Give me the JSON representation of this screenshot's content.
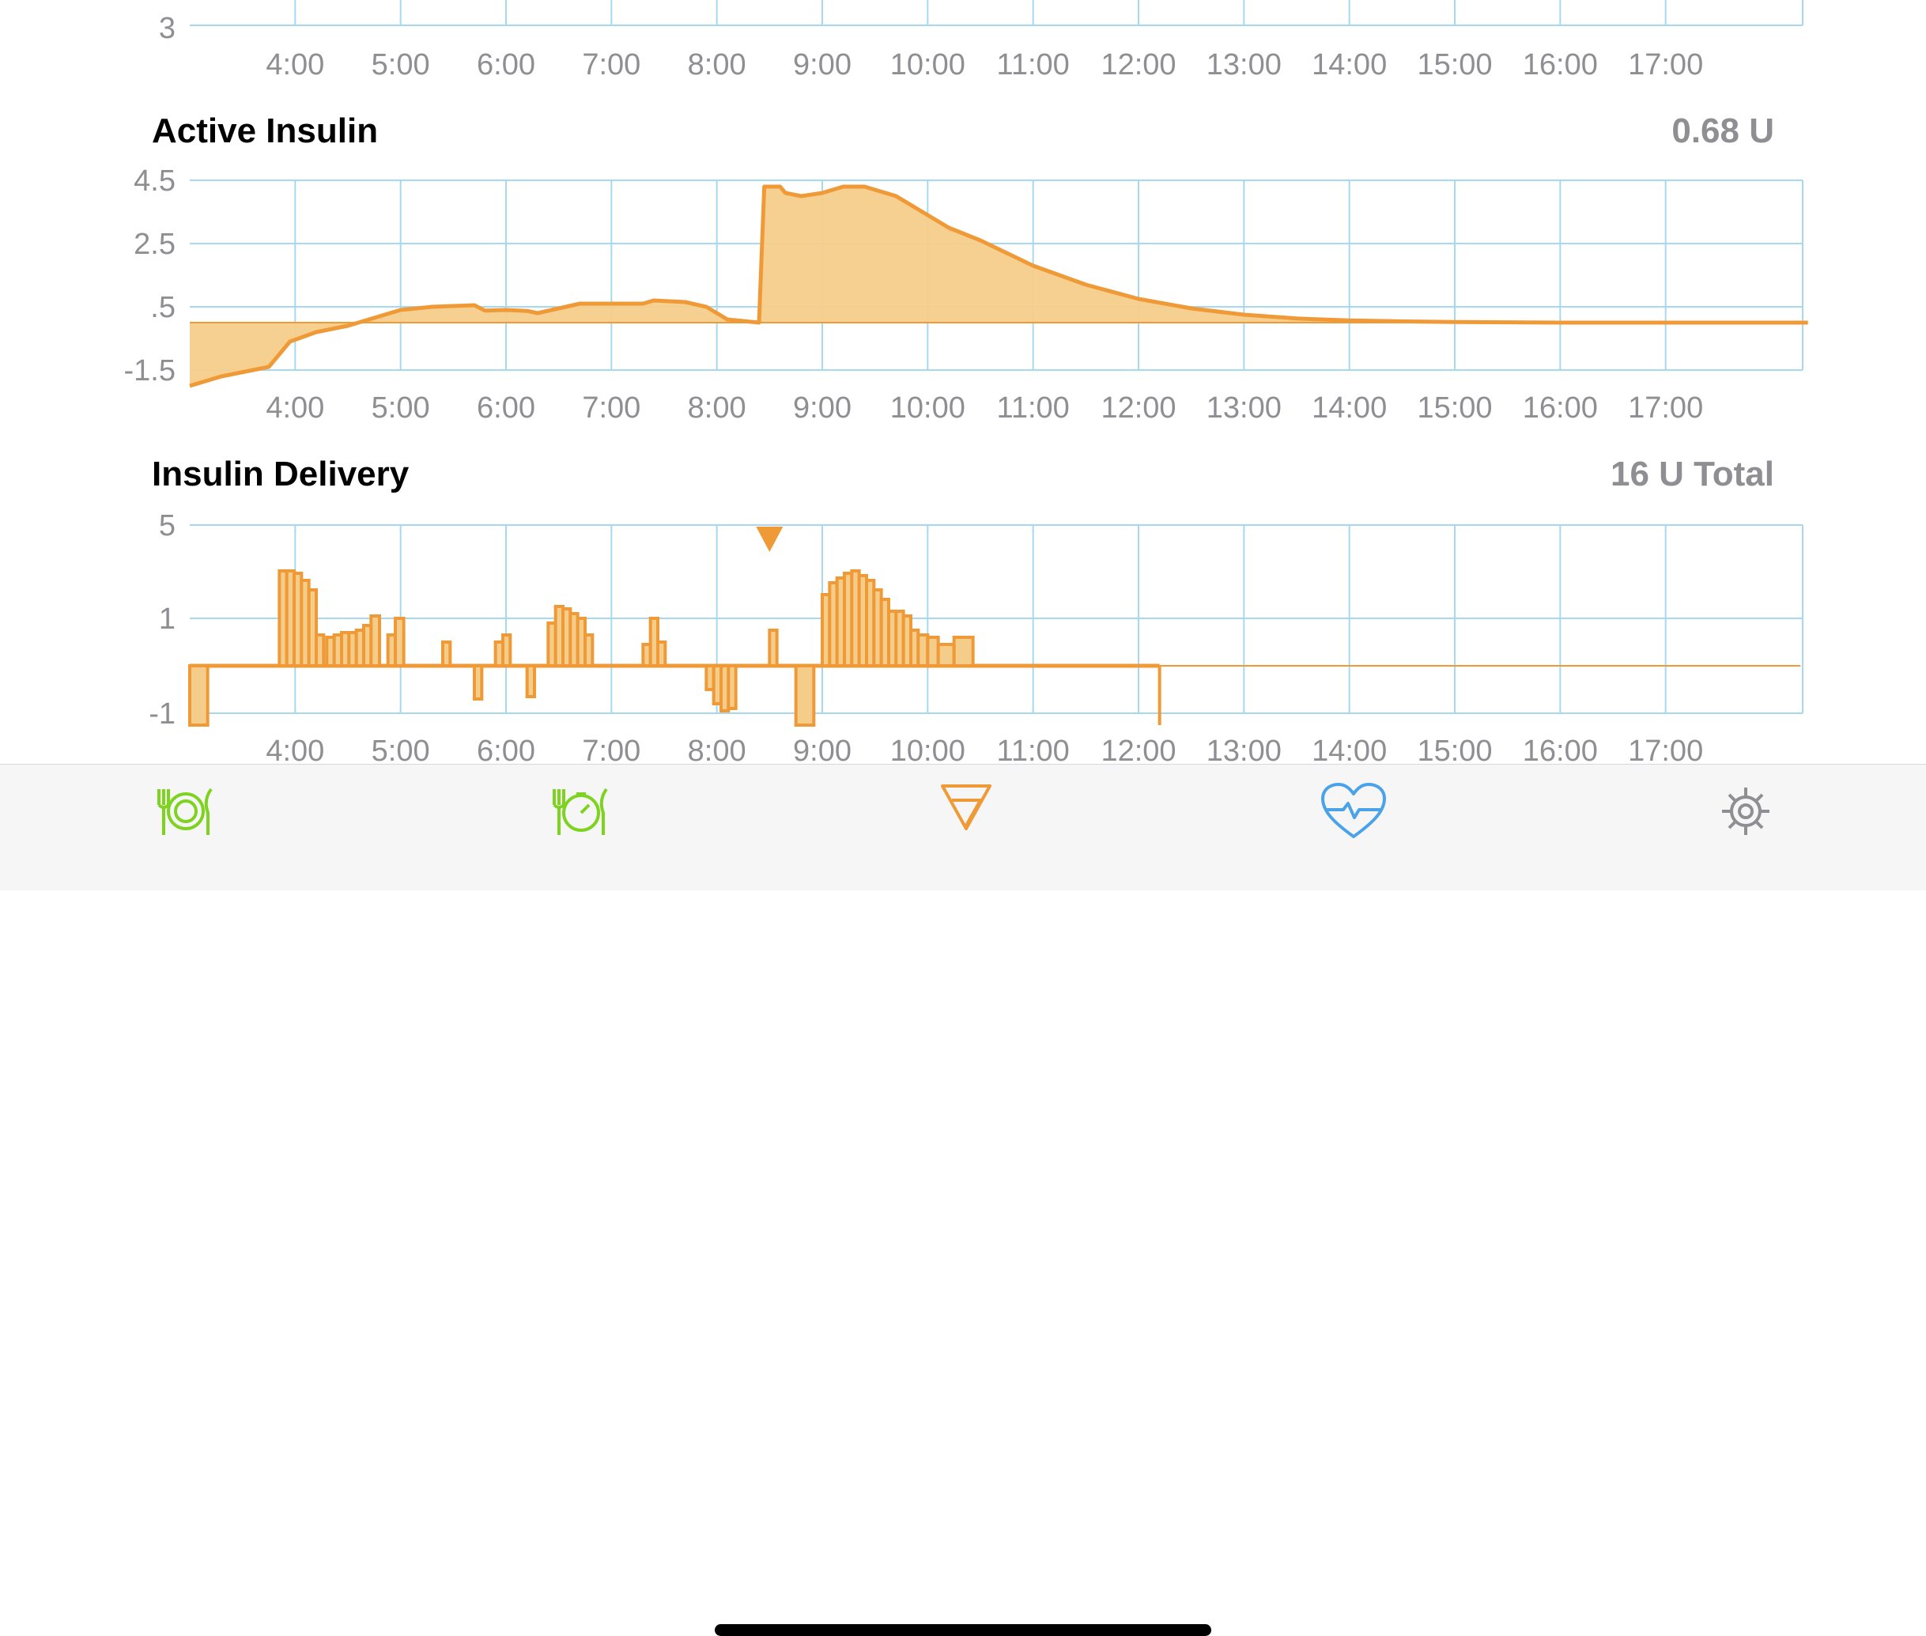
{
  "chart_data": [
    {
      "type": "line",
      "title": "",
      "y_ticks": [
        "3"
      ],
      "x_ticks": [
        "4:00",
        "5:00",
        "6:00",
        "7:00",
        "8:00",
        "9:00",
        "10:00",
        "11:00",
        "12:00",
        "13:00",
        "14:00",
        "15:00",
        "16:00",
        "17:00"
      ],
      "grid": true
    },
    {
      "type": "area",
      "title": "Active Insulin",
      "value_label": "0.68 U",
      "y_ticks": [
        "4.5",
        "2.5",
        ".5",
        "-1.5"
      ],
      "ylim": [
        -1.5,
        4.5
      ],
      "baseline": 0,
      "x_ticks": [
        "4:00",
        "5:00",
        "6:00",
        "7:00",
        "8:00",
        "9:00",
        "10:00",
        "11:00",
        "12:00",
        "13:00",
        "14:00",
        "15:00",
        "16:00",
        "17:00"
      ],
      "grid": true,
      "color": "#f09a37",
      "fill": "#f5cd8a",
      "x": [
        3.0,
        3.3,
        3.75,
        3.95,
        4.2,
        4.5,
        4.7,
        5.0,
        5.3,
        5.7,
        5.8,
        6.0,
        6.2,
        6.3,
        6.5,
        6.7,
        7.0,
        7.3,
        7.4,
        7.7,
        7.9,
        8.1,
        8.4,
        8.45,
        8.6,
        8.65,
        8.8,
        9.0,
        9.2,
        9.4,
        9.7,
        10.0,
        10.2,
        10.5,
        11.0,
        11.5,
        12.0,
        12.5,
        13.0,
        13.5,
        14.0,
        14.5,
        15.0,
        15.5,
        16.0,
        16.5,
        17.0,
        17.5,
        18.35
      ],
      "y": [
        -2.0,
        -1.7,
        -1.4,
        -0.6,
        -0.3,
        -0.1,
        0.1,
        0.4,
        0.5,
        0.55,
        0.38,
        0.4,
        0.37,
        0.3,
        0.45,
        0.6,
        0.6,
        0.6,
        0.7,
        0.65,
        0.5,
        0.1,
        0.0,
        4.3,
        4.3,
        4.1,
        4.0,
        4.1,
        4.3,
        4.3,
        4.0,
        3.4,
        3.0,
        2.6,
        1.8,
        1.2,
        0.75,
        0.45,
        0.25,
        0.13,
        0.07,
        0.04,
        0.02,
        0.01,
        0.0,
        0.0,
        0.0,
        0.0,
        0.0
      ]
    },
    {
      "type": "bar",
      "title": "Insulin Delivery",
      "value_label": "16 U Total",
      "y_ticks": [
        "5",
        "1",
        "-1"
      ],
      "ylim": [
        -1.25,
        3.0
      ],
      "x_ticks": [
        "4:00",
        "5:00",
        "6:00",
        "7:00",
        "8:00",
        "9:00",
        "10:00",
        "11:00",
        "12:00",
        "13:00",
        "14:00",
        "15:00",
        "16:00",
        "17:00"
      ],
      "grid": true,
      "color": "#f09a37",
      "fill": "#f5cd8a",
      "bolus_marker_time": 8.5,
      "delivery_end_time": 12.2,
      "bars": [
        {
          "start": 3.0,
          "end": 3.17,
          "value": -1.25
        },
        {
          "start": 3.85,
          "end": 3.92,
          "value": 2.0
        },
        {
          "start": 3.92,
          "end": 3.99,
          "value": 2.0
        },
        {
          "start": 3.99,
          "end": 4.06,
          "value": 1.95
        },
        {
          "start": 4.06,
          "end": 4.13,
          "value": 1.8
        },
        {
          "start": 4.13,
          "end": 4.2,
          "value": 1.6
        },
        {
          "start": 4.2,
          "end": 4.27,
          "value": 0.65
        },
        {
          "start": 4.3,
          "end": 4.37,
          "value": 0.6
        },
        {
          "start": 4.37,
          "end": 4.44,
          "value": 0.65
        },
        {
          "start": 4.44,
          "end": 4.51,
          "value": 0.7
        },
        {
          "start": 4.51,
          "end": 4.58,
          "value": 0.7
        },
        {
          "start": 4.58,
          "end": 4.65,
          "value": 0.75
        },
        {
          "start": 4.65,
          "end": 4.72,
          "value": 0.85
        },
        {
          "start": 4.72,
          "end": 4.8,
          "value": 1.05
        },
        {
          "start": 4.88,
          "end": 4.95,
          "value": 0.65
        },
        {
          "start": 4.95,
          "end": 5.03,
          "value": 1.0
        },
        {
          "start": 5.4,
          "end": 5.47,
          "value": 0.5
        },
        {
          "start": 5.7,
          "end": 5.77,
          "value": -0.7
        },
        {
          "start": 5.9,
          "end": 5.97,
          "value": 0.5
        },
        {
          "start": 5.97,
          "end": 6.04,
          "value": 0.65
        },
        {
          "start": 6.2,
          "end": 6.27,
          "value": -0.65
        },
        {
          "start": 6.4,
          "end": 6.47,
          "value": 0.9
        },
        {
          "start": 6.47,
          "end": 6.54,
          "value": 1.25
        },
        {
          "start": 6.54,
          "end": 6.61,
          "value": 1.2
        },
        {
          "start": 6.61,
          "end": 6.68,
          "value": 1.1
        },
        {
          "start": 6.68,
          "end": 6.75,
          "value": 1.0
        },
        {
          "start": 6.75,
          "end": 6.82,
          "value": 0.65
        },
        {
          "start": 7.3,
          "end": 7.37,
          "value": 0.45
        },
        {
          "start": 7.37,
          "end": 7.44,
          "value": 1.0
        },
        {
          "start": 7.44,
          "end": 7.51,
          "value": 0.5
        },
        {
          "start": 7.9,
          "end": 7.97,
          "value": -0.5
        },
        {
          "start": 7.97,
          "end": 8.04,
          "value": -0.8
        },
        {
          "start": 8.04,
          "end": 8.11,
          "value": -0.95
        },
        {
          "start": 8.11,
          "end": 8.18,
          "value": -0.9
        },
        {
          "start": 8.5,
          "end": 8.57,
          "value": 0.75
        },
        {
          "start": 8.75,
          "end": 8.92,
          "value": -1.25
        },
        {
          "start": 9.0,
          "end": 9.07,
          "value": 1.5
        },
        {
          "start": 9.07,
          "end": 9.14,
          "value": 1.75
        },
        {
          "start": 9.14,
          "end": 9.21,
          "value": 1.85
        },
        {
          "start": 9.21,
          "end": 9.28,
          "value": 1.95
        },
        {
          "start": 9.28,
          "end": 9.35,
          "value": 2.0
        },
        {
          "start": 9.35,
          "end": 9.42,
          "value": 1.9
        },
        {
          "start": 9.42,
          "end": 9.49,
          "value": 1.8
        },
        {
          "start": 9.49,
          "end": 9.56,
          "value": 1.6
        },
        {
          "start": 9.56,
          "end": 9.63,
          "value": 1.4
        },
        {
          "start": 9.63,
          "end": 9.7,
          "value": 1.15
        },
        {
          "start": 9.7,
          "end": 9.77,
          "value": 1.15
        },
        {
          "start": 9.77,
          "end": 9.84,
          "value": 1.05
        },
        {
          "start": 9.84,
          "end": 9.91,
          "value": 0.75
        },
        {
          "start": 9.91,
          "end": 10.0,
          "value": 0.65
        },
        {
          "start": 10.0,
          "end": 10.1,
          "value": 0.6
        },
        {
          "start": 10.1,
          "end": 10.25,
          "value": 0.45
        },
        {
          "start": 10.25,
          "end": 10.43,
          "value": 0.6
        }
      ]
    }
  ],
  "tabbar": {
    "tabs": [
      {
        "icon": "carbs-plate-icon",
        "color": "#7ed321"
      },
      {
        "icon": "pre-meal-timer-icon",
        "color": "#7ed321"
      },
      {
        "icon": "bolus-icon",
        "color": "#f09a37"
      },
      {
        "icon": "health-heart-icon",
        "color": "#4aa3e8"
      },
      {
        "icon": "settings-gear-icon",
        "color": "#8e8e93"
      }
    ]
  }
}
